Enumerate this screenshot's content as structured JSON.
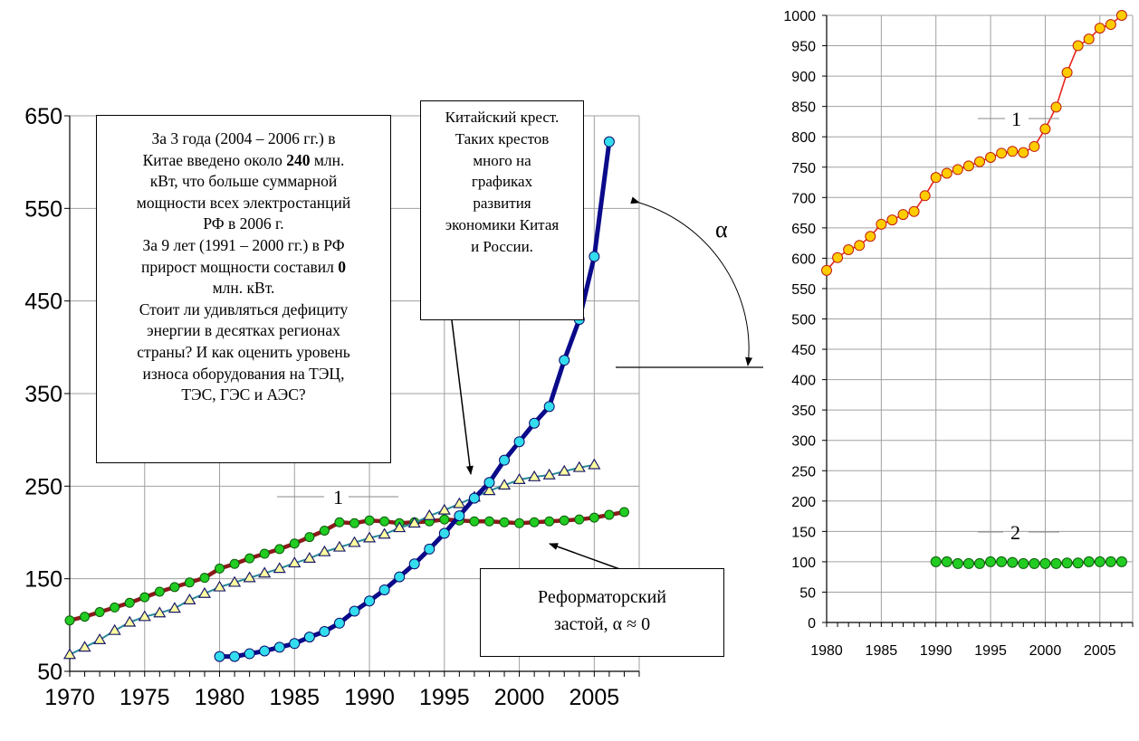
{
  "colors": {
    "russia_line": "#8b1a1a",
    "russia_marker": "#22cc22",
    "china_line": "#0a0a8a",
    "china_marker": "#33ddee",
    "world_line": "#2a8a9a",
    "world_marker": "#ffffa0",
    "growth_line": "#e8231a",
    "growth_marker": "#ffcc00",
    "grid": "#a0a0a0"
  },
  "chart_data": [
    {
      "type": "line",
      "x": [
        1970,
        1971,
        1972,
        1973,
        1974,
        1975,
        1976,
        1977,
        1978,
        1979,
        1980,
        1981,
        1982,
        1983,
        1984,
        1985,
        1986,
        1987,
        1988,
        1989,
        1990,
        1991,
        1992,
        1993,
        1994,
        1995,
        1996,
        1997,
        1998,
        1999,
        2000,
        2001,
        2002,
        2003,
        2004,
        2005,
        2006,
        2007
      ],
      "xlim": [
        1970,
        2008
      ],
      "ylim": [
        50,
        650
      ],
      "xticks": [
        1970,
        1975,
        1980,
        1985,
        1990,
        1995,
        2000,
        2005
      ],
      "yticks": [
        50,
        150,
        250,
        350,
        450,
        550,
        650
      ],
      "grid": true,
      "series": [
        {
          "key": "russia",
          "x": [
            1970,
            1971,
            1972,
            1973,
            1974,
            1975,
            1976,
            1977,
            1978,
            1979,
            1980,
            1981,
            1982,
            1983,
            1984,
            1985,
            1986,
            1987,
            1988,
            1989,
            1990,
            1991,
            1992,
            1993,
            1994,
            1995,
            1996,
            1997,
            1998,
            1999,
            2000,
            2001,
            2002,
            2003,
            2004,
            2005,
            2006,
            2007
          ],
          "values": [
            105,
            109,
            114,
            119,
            124,
            130,
            136,
            141,
            146,
            151,
            161,
            166,
            172,
            177,
            182,
            188,
            195,
            202,
            211,
            210,
            213,
            212,
            210,
            211,
            212,
            214,
            213,
            212,
            212,
            211,
            210,
            211,
            212,
            213,
            214,
            216,
            219,
            222
          ]
        },
        {
          "key": "world",
          "x": [
            1970,
            1971,
            1972,
            1973,
            1974,
            1975,
            1976,
            1977,
            1978,
            1979,
            1980,
            1981,
            1982,
            1983,
            1984,
            1985,
            1986,
            1987,
            1988,
            1989,
            1990,
            1991,
            1992,
            1993,
            1994,
            1995,
            1996,
            1997,
            1998,
            1999,
            2000,
            2001,
            2002,
            2003,
            2004,
            2005
          ],
          "values": [
            68,
            76,
            84,
            94,
            103,
            109,
            113,
            118,
            127,
            134,
            141,
            146,
            151,
            156,
            161,
            167,
            172,
            179,
            184,
            189,
            194,
            198,
            205,
            210,
            218,
            224,
            231,
            238,
            245,
            251,
            257,
            260,
            262,
            266,
            270,
            273
          ]
        },
        {
          "key": "china",
          "x": [
            1980,
            1981,
            1982,
            1983,
            1984,
            1985,
            1986,
            1987,
            1988,
            1989,
            1990,
            1991,
            1992,
            1993,
            1994,
            1995,
            1996,
            1997,
            1998,
            1999,
            2000,
            2001,
            2002,
            2003,
            2004,
            2005,
            2006
          ],
          "values": [
            66,
            66,
            69,
            72,
            76,
            80,
            87,
            93,
            102,
            115,
            126,
            138,
            152,
            166,
            182,
            199,
            218,
            237,
            254,
            278,
            298,
            318,
            336,
            386,
            430,
            498,
            622
          ]
        }
      ],
      "labels": {
        "curve_1": "1",
        "alpha": "α"
      }
    },
    {
      "type": "line",
      "x": [
        1980,
        1981,
        1982,
        1983,
        1984,
        1985,
        1986,
        1987,
        1988,
        1989,
        1990,
        1991,
        1992,
        1993,
        1994,
        1995,
        1996,
        1997,
        1998,
        1999,
        2000,
        2001,
        2002,
        2003,
        2004,
        2005,
        2006,
        2007
      ],
      "xlim": [
        1980,
        2008
      ],
      "ylim": [
        0,
        1000
      ],
      "xticks": [
        1980,
        1985,
        1990,
        1995,
        2000,
        2005
      ],
      "yticks": [
        0,
        50,
        100,
        150,
        200,
        250,
        300,
        350,
        400,
        450,
        500,
        550,
        600,
        650,
        700,
        750,
        800,
        850,
        900,
        950,
        1000
      ],
      "grid": true,
      "series": [
        {
          "key": "growth",
          "x": [
            1980,
            1981,
            1982,
            1983,
            1984,
            1985,
            1986,
            1987,
            1988,
            1989,
            1990,
            1991,
            1992,
            1993,
            1994,
            1995,
            1996,
            1997,
            1998,
            1999,
            2000,
            2001,
            2002,
            2003,
            2004,
            2005,
            2006,
            2007
          ],
          "values": [
            580,
            601,
            614,
            621,
            636,
            656,
            663,
            672,
            677,
            703,
            733,
            740,
            746,
            752,
            759,
            766,
            773,
            776,
            774,
            784,
            813,
            849,
            906,
            950,
            961,
            979,
            985,
            1000
          ]
        },
        {
          "key": "russia_index",
          "x": [
            1990,
            1991,
            1992,
            1993,
            1994,
            1995,
            1996,
            1997,
            1998,
            1999,
            2000,
            2001,
            2002,
            2003,
            2004,
            2005,
            2006,
            2007
          ],
          "values": [
            100,
            100,
            97,
            97,
            97,
            100,
            100,
            99,
            97,
            97,
            97,
            97,
            98,
            98,
            100,
            100,
            100,
            100
          ]
        }
      ],
      "labels": {
        "curve_1": "1",
        "curve_2": "2"
      }
    }
  ],
  "text_box_left": {
    "line1": "За 3 года (2004 – 2006 гг.) в",
    "line2_pre": "Китае введено около ",
    "line2_bold": "240",
    "line2_post": " млн.",
    "line3": "кВт, что больше суммарной",
    "line4": "мощности всех электростанций",
    "line5": "РФ в 2006 г.",
    "line6": "За 9 лет (1991 – 2000 гг.) в РФ",
    "line7_pre": "прирост мощности составил ",
    "line7_bold": "0",
    "line8": "млн. кВт.",
    "line9": "Стоит ли удивляться дефициту",
    "line10": "энергии в десятках регионах",
    "line11": "страны? И как оценить уровень",
    "line12": "износа оборудования на ТЭЦ,",
    "line13": "ТЭС, ГЭС и АЭС?"
  },
  "text_box_middle": {
    "line1": "Китайский крест.",
    "line2": "Таких крестов",
    "line3": "много на",
    "line4": "графиках",
    "line5": "развития",
    "line6": "экономики Китая",
    "line7": "и России."
  },
  "text_box_bottom": {
    "line1": "Реформаторский",
    "line2": "застой, α ≈ 0"
  }
}
